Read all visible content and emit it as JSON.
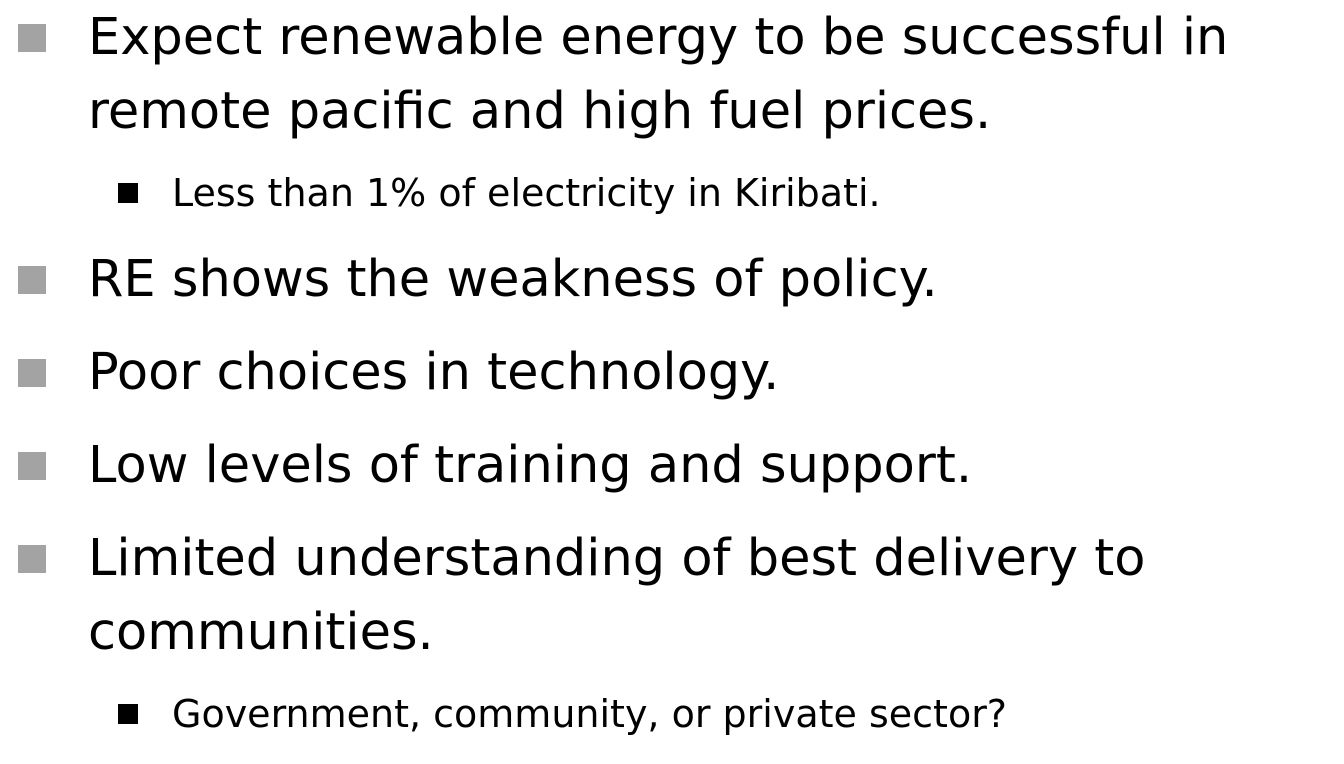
{
  "bullets": [
    {
      "lines": [
        "Expect renewable energy to be successful in",
        "remote pacific and high fuel prices."
      ],
      "sub": [
        "Less than 1% of electricity in Kiribati."
      ]
    },
    {
      "lines": [
        "RE shows the weakness of policy."
      ],
      "sub": []
    },
    {
      "lines": [
        "Poor choices in technology."
      ],
      "sub": []
    },
    {
      "lines": [
        "Low levels of training and support."
      ],
      "sub": []
    },
    {
      "lines": [
        "Limited understanding of best delivery to",
        "communities."
      ],
      "sub": [
        "Government, community, or private sector?"
      ]
    }
  ]
}
